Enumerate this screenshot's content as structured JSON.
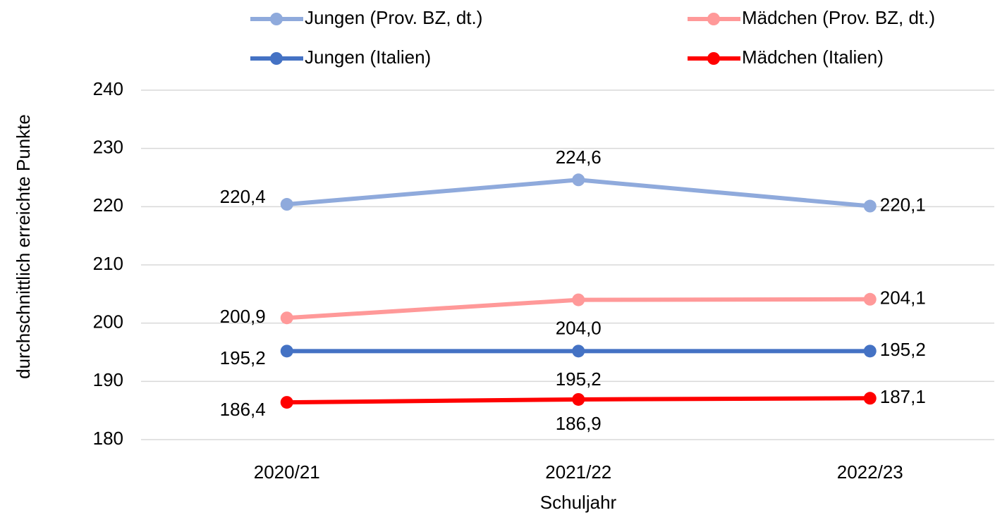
{
  "chart_data": {
    "type": "line",
    "x_label": "Schuljahr",
    "y_label": "durchschnittlich erreichte Punkte",
    "categories": [
      "2020/21",
      "2021/22",
      "2022/23"
    ],
    "series": [
      {
        "name": "Jungen (Prov. BZ, dt.)",
        "color": "#8faadc",
        "values": [
          220.4,
          224.6,
          220.1
        ],
        "value_labels": [
          "220,4",
          "224,6",
          "220,1"
        ]
      },
      {
        "name": "Mädchen (Prov. BZ, dt.)",
        "color": "#ff9999",
        "values": [
          200.9,
          204.0,
          204.1
        ],
        "value_labels": [
          "200,9",
          "204,0",
          "204,1"
        ]
      },
      {
        "name": "Jungen (Italien)",
        "color": "#4472c4",
        "values": [
          195.2,
          195.2,
          195.2
        ],
        "value_labels": [
          "195,2",
          "195,2",
          "195,2"
        ]
      },
      {
        "name": "Mädchen (Italien)",
        "color": "#ff0000",
        "values": [
          186.4,
          186.9,
          187.1
        ],
        "value_labels": [
          "186,4",
          "186,9",
          "187,1"
        ]
      }
    ],
    "ylim": [
      180,
      240
    ],
    "yticks": [
      180,
      190,
      200,
      210,
      220,
      230,
      240
    ],
    "grid": true,
    "legend": "top"
  }
}
